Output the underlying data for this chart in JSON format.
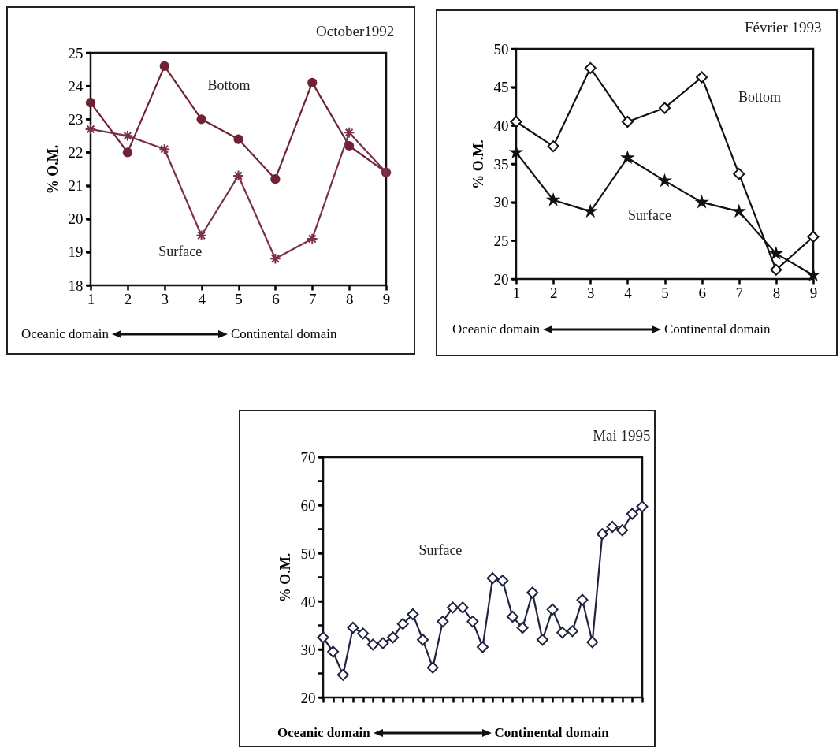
{
  "chart_data": [
    {
      "type": "line",
      "title": "October1992",
      "ylabel": "% O.M.",
      "categories": [
        "1",
        "2",
        "3",
        "4",
        "5",
        "6",
        "7",
        "8",
        "9"
      ],
      "series": [
        {
          "name": "Bottom",
          "color": "#6e2233",
          "marker": "circle",
          "values": [
            23.5,
            22.0,
            24.6,
            23.0,
            22.4,
            21.2,
            24.1,
            22.2,
            21.4
          ]
        },
        {
          "name": "Surface",
          "color": "#7b3048",
          "marker": "cross",
          "values": [
            22.7,
            22.5,
            22.1,
            19.5,
            21.3,
            18.8,
            19.4,
            22.6,
            21.4
          ]
        }
      ],
      "ylim": [
        18,
        25
      ],
      "yticks": [
        18,
        19,
        20,
        21,
        22,
        23,
        24,
        25
      ],
      "line_style": "solid",
      "annotations": [
        "Oceanic domain",
        "Continental domain"
      ]
    },
    {
      "type": "line",
      "title": "Février 1993",
      "ylabel": "% O.M.",
      "categories": [
        "1",
        "2",
        "3",
        "4",
        "5",
        "6",
        "7",
        "8",
        "9"
      ],
      "series": [
        {
          "name": "Bottom",
          "color": "#111111",
          "marker": "diamond",
          "values": [
            40.5,
            37.3,
            47.5,
            40.5,
            42.3,
            46.3,
            33.7,
            21.2,
            25.5
          ]
        },
        {
          "name": "Surface",
          "color": "#111111",
          "marker": "star",
          "values": [
            36.5,
            30.3,
            28.8,
            35.8,
            32.8,
            30.0,
            28.8,
            23.3,
            20.5
          ]
        }
      ],
      "ylim": [
        20,
        50
      ],
      "yticks": [
        20,
        25,
        30,
        35,
        40,
        45,
        50
      ],
      "line_style": "solid",
      "annotations": [
        "Oceanic domain",
        "Continental domain"
      ]
    },
    {
      "type": "line",
      "title": "Mai 1995",
      "ylabel": "% O.M.",
      "categories": [
        null,
        null,
        null,
        null,
        null,
        null,
        null,
        null,
        null,
        null,
        null,
        null,
        null,
        null,
        null,
        null,
        null,
        null,
        null,
        null,
        null,
        null,
        null,
        null,
        null,
        null,
        null,
        null,
        null,
        null,
        null,
        null,
        null
      ],
      "series": [
        {
          "name": "Surface",
          "color": "#1f2240",
          "marker": "diamond",
          "values": [
            32.5,
            29.5,
            24.7,
            34.5,
            33.3,
            31.0,
            31.3,
            32.5,
            35.3,
            37.3,
            32.0,
            26.2,
            35.8,
            38.7,
            38.7,
            35.8,
            30.5,
            44.8,
            44.3,
            36.8,
            34.5,
            41.8,
            32.0,
            38.3,
            33.5,
            33.8,
            40.3,
            31.5,
            54.0,
            55.5,
            54.8,
            58.2,
            59.7
          ]
        }
      ],
      "ylim": [
        20,
        70
      ],
      "yticks": [
        20,
        {
          "value": 25,
          "label": null
        },
        30,
        {
          "value": 35,
          "label": null
        },
        40,
        {
          "value": 45,
          "label": null
        },
        50,
        {
          "value": 55,
          "label": null
        },
        60,
        {
          "value": 65,
          "label": null
        },
        70
      ],
      "line_style": "solid",
      "annotations": [
        "Oceanic domain",
        "Continental domain"
      ]
    }
  ]
}
